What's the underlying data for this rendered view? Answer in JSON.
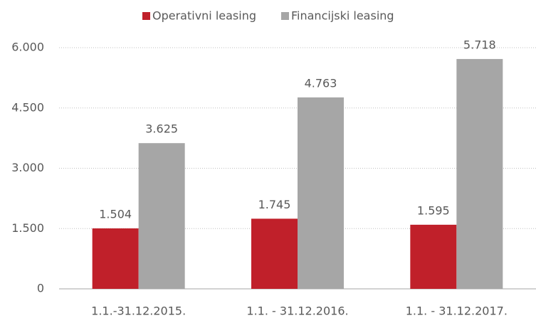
{
  "chart_data": {
    "type": "bar",
    "categories": [
      "1.1.-31.12.2015.",
      "1.1. - 31.12.2016.",
      "1.1. - 31.12.2017."
    ],
    "series": [
      {
        "name": "Operativni leasing",
        "color": "#c0202a",
        "values": [
          1504,
          1745,
          1595
        ],
        "value_labels": [
          "1.504",
          "1.745",
          "1.595"
        ]
      },
      {
        "name": "Financijski leasing",
        "color": "#a6a6a6",
        "values": [
          3625,
          4763,
          5718
        ],
        "value_labels": [
          "3.625",
          "4.763",
          "5.718"
        ]
      }
    ],
    "ylim": [
      0,
      6000
    ],
    "yticks": [
      0,
      {
        "value": 1500,
        "label": "1.500"
      },
      {
        "value": 3000,
        "label": "3.000"
      },
      {
        "value": 4500,
        "label": "4.500"
      },
      {
        "value": 6000,
        "label": "6.000"
      }
    ],
    "grid": true,
    "legend": "top"
  }
}
